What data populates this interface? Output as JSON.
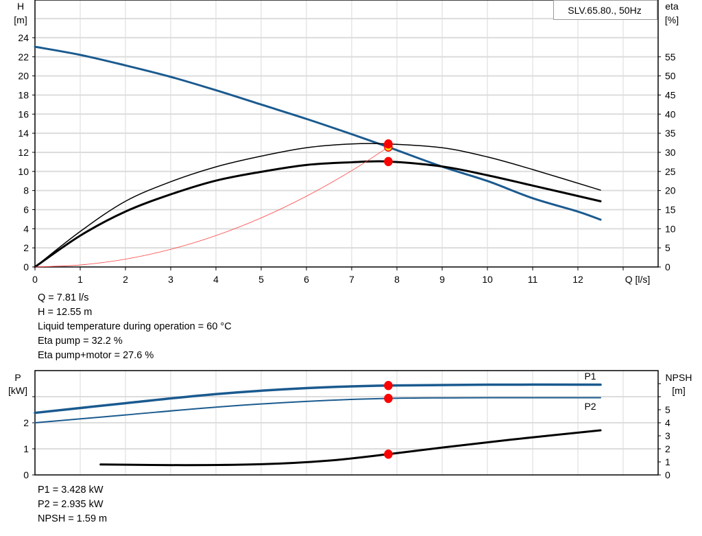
{
  "chart_data": [
    {
      "type": "line",
      "legend": "SLV.65.80., 50Hz",
      "xlabel": "Q [l/s]",
      "ylabel_left": [
        "H",
        "[m]"
      ],
      "ylabel_right": [
        "eta",
        "[%]"
      ],
      "xlim": [
        0,
        13.7
      ],
      "ylim_left": [
        0,
        28
      ],
      "ylim_right": [
        0,
        70
      ],
      "x_ticks": [
        "0",
        "1",
        "2",
        "3",
        "4",
        "5",
        "6",
        "7",
        "8",
        "9",
        "10",
        "11",
        "12"
      ],
      "y_ticks_left": [
        "0",
        "2",
        "4",
        "6",
        "8",
        "10",
        "12",
        "14",
        "16",
        "18",
        "20",
        "22",
        "24"
      ],
      "y_ticks_right": [
        "0",
        "5",
        "10",
        "15",
        "20",
        "25",
        "30",
        "35",
        "40",
        "45",
        "50",
        "55"
      ],
      "grid": true,
      "series": [
        {
          "key": "H",
          "axis": "left",
          "color": "#1a5a8f",
          "x": [
            0,
            1,
            2,
            3,
            4,
            5,
            6,
            7,
            7.81,
            9,
            10,
            11,
            12,
            12.5
          ],
          "y": [
            23.05,
            22.2,
            21.1,
            19.9,
            18.5,
            17.0,
            15.5,
            13.9,
            12.55,
            10.5,
            9.0,
            7.2,
            5.8,
            4.95
          ]
        },
        {
          "key": "eta_pump",
          "axis": "right",
          "color": "#000000",
          "x": [
            0,
            1,
            2,
            3,
            4,
            5,
            6,
            7,
            7.81,
            9,
            10,
            11,
            12.5
          ],
          "y": [
            0,
            9.3,
            17.2,
            22.3,
            26.2,
            29.0,
            31.2,
            32.2,
            32.2,
            31.2,
            28.8,
            25.5,
            20.1
          ]
        },
        {
          "key": "eta_pump_motor",
          "axis": "right",
          "color": "#000000",
          "x": [
            0,
            1,
            2,
            3,
            4,
            5,
            6,
            7,
            7.81,
            9,
            10,
            11,
            12.5
          ],
          "y": [
            0,
            8.2,
            14.5,
            19.0,
            22.6,
            24.9,
            26.7,
            27.4,
            27.6,
            26.3,
            24.0,
            21.3,
            17.2
          ]
        },
        {
          "key": "system",
          "axis": "left",
          "color": "#ff4040",
          "x": [
            0,
            1,
            2,
            3,
            4,
            5,
            6,
            7,
            7.81
          ],
          "y": [
            0,
            0.21,
            0.82,
            1.85,
            3.29,
            5.14,
            7.41,
            10.08,
            12.55
          ]
        }
      ],
      "duty_points": [
        {
          "axis": "left",
          "x": 7.81,
          "y": 12.55,
          "fill": "#ffdd00"
        },
        {
          "axis": "right",
          "x": 7.81,
          "y": 32.2,
          "fill": "#ff0000"
        },
        {
          "axis": "right",
          "x": 7.81,
          "y": 27.6,
          "fill": "#ff0000"
        }
      ]
    },
    {
      "type": "line",
      "ylabel_left": [
        "P",
        "[kW]"
      ],
      "ylabel_right": [
        "NPSH",
        "[m]"
      ],
      "xlim": [
        0,
        13.7
      ],
      "ylim_left": [
        0,
        4
      ],
      "ylim_right": [
        0,
        8
      ],
      "y_ticks_left": [
        "0",
        "1",
        "2"
      ],
      "y_ticks_right": [
        "0",
        "1",
        "2",
        "3",
        "4",
        "5"
      ],
      "grid": true,
      "series": [
        {
          "name": "P1",
          "axis": "left",
          "color": "#1a5a8f",
          "x": [
            0,
            2,
            4,
            6,
            7.81,
            10,
            12.5
          ],
          "y": [
            2.38,
            2.75,
            3.1,
            3.33,
            3.428,
            3.46,
            3.46
          ]
        },
        {
          "name": "P2",
          "axis": "left",
          "color": "#1a5a8f",
          "x": [
            0,
            2,
            4,
            6,
            7.81,
            10,
            12.5
          ],
          "y": [
            2.0,
            2.3,
            2.6,
            2.82,
            2.935,
            2.96,
            2.96
          ]
        },
        {
          "key": "NPSH",
          "axis": "right",
          "color": "#000000",
          "x": [
            1.45,
            3.3,
            5,
            6.5,
            7.81,
            9,
            10.5,
            12.5
          ],
          "y": [
            0.8,
            0.75,
            0.82,
            1.1,
            1.59,
            2.1,
            2.7,
            3.42
          ]
        }
      ],
      "duty_points": [
        {
          "axis": "left",
          "x": 7.81,
          "y": 3.428,
          "fill": "#ff0000"
        },
        {
          "axis": "left",
          "x": 7.81,
          "y": 2.935,
          "fill": "#ff0000"
        },
        {
          "axis": "right",
          "x": 7.81,
          "y": 1.59,
          "fill": "#ff0000"
        }
      ]
    }
  ],
  "info_top": [
    "Q = 7.81 l/s",
    "H = 12.55 m",
    "Liquid temperature during operation = 60 °C",
    "Eta pump = 32.2 %",
    "Eta pump+motor = 27.6 %"
  ],
  "info_bottom": [
    "P1 = 3.428 kW",
    "P2 = 2.935 kW",
    "NPSH = 1.59 m"
  ]
}
